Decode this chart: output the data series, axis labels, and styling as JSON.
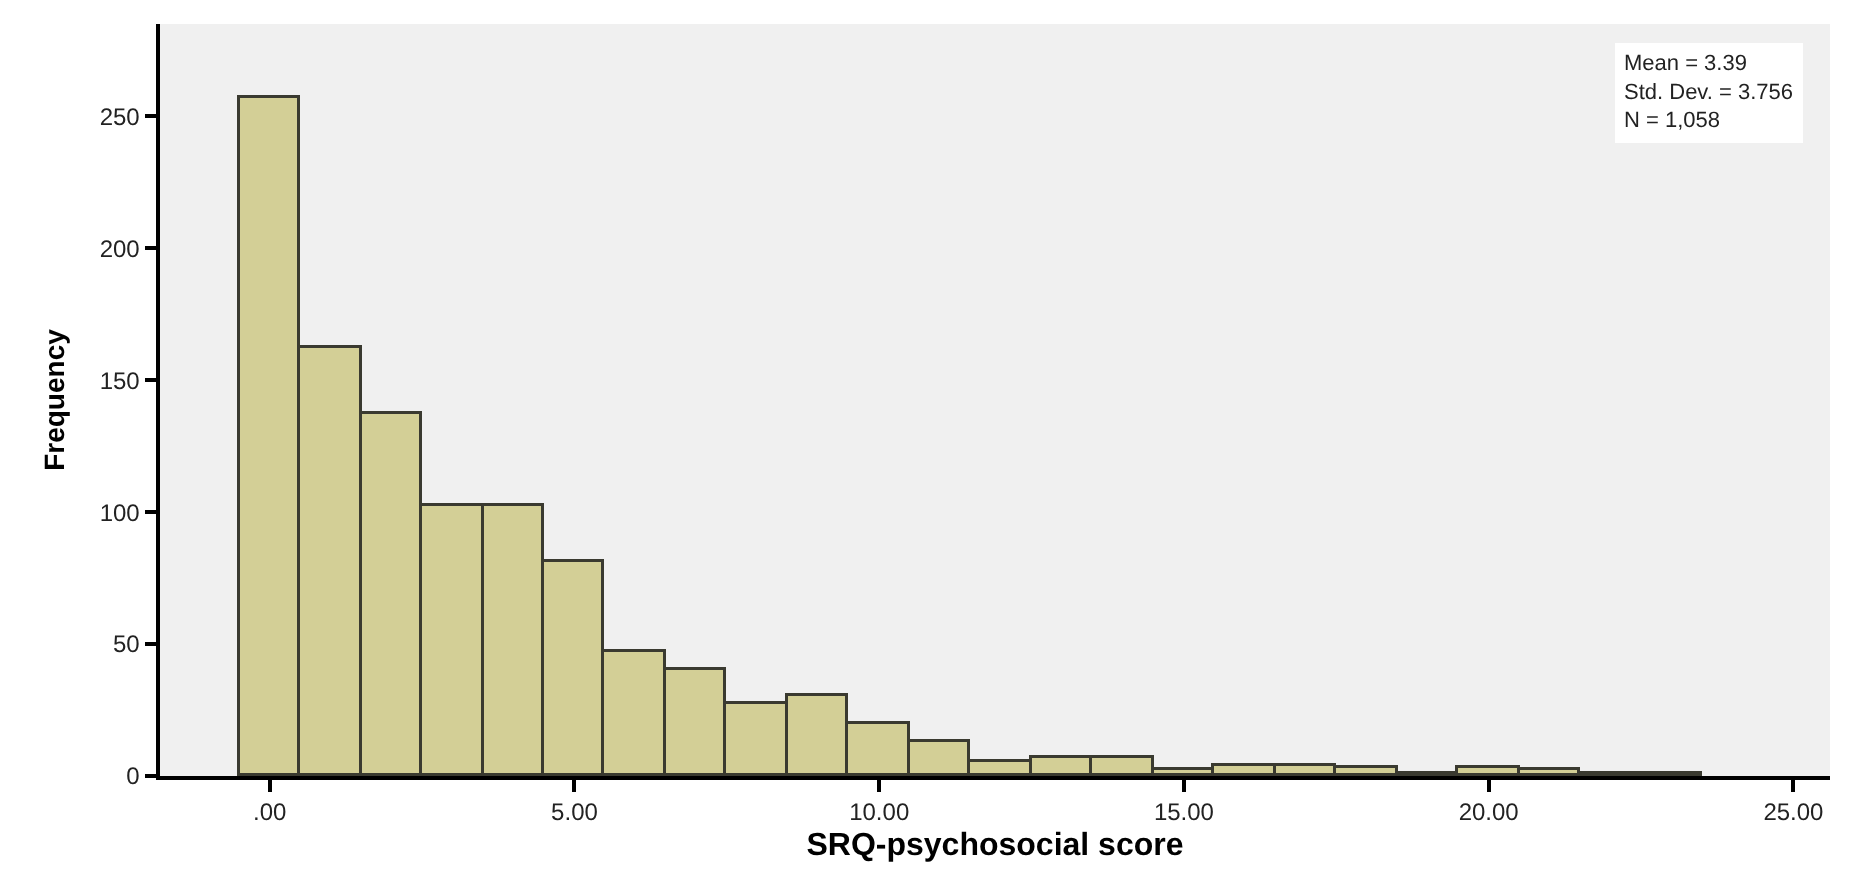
{
  "chart_data": {
    "type": "histogram",
    "xlabel": "SRQ-psychosocial score",
    "ylabel": "Frequency",
    "bins": [
      -0.5,
      0.5,
      1.5,
      2.5,
      3.5,
      4.5,
      5.5,
      6.5,
      7.5,
      8.5,
      9.5,
      10.5,
      11.5,
      12.5,
      13.5,
      14.5,
      15.5,
      16.5,
      17.5,
      18.5,
      19.5,
      20.5,
      21.5,
      22.5,
      23.5
    ],
    "values": [
      257,
      162,
      137,
      102,
      102,
      81,
      47,
      40,
      27,
      30,
      20,
      13,
      5,
      7,
      7,
      2,
      4,
      4,
      3,
      1,
      3,
      2,
      1,
      1
    ],
    "color": "#d3cf96",
    "xlim": [
      -1.8,
      25.6
    ],
    "xticks": [
      {
        "value": 0,
        "label": ".00"
      },
      {
        "value": 5,
        "label": "5.00"
      },
      {
        "value": 10,
        "label": "10.00"
      },
      {
        "value": 15,
        "label": "15.00"
      },
      {
        "value": 20,
        "label": "20.00"
      },
      {
        "value": 25,
        "label": "25.00"
      }
    ],
    "ylim": [
      0,
      285
    ],
    "yticks": [
      0,
      50,
      100,
      150,
      200,
      250
    ],
    "grid": false,
    "annotations": [
      "Mean = 3.39\nStd. Dev. = 3.756\nN = 1,058"
    ]
  }
}
